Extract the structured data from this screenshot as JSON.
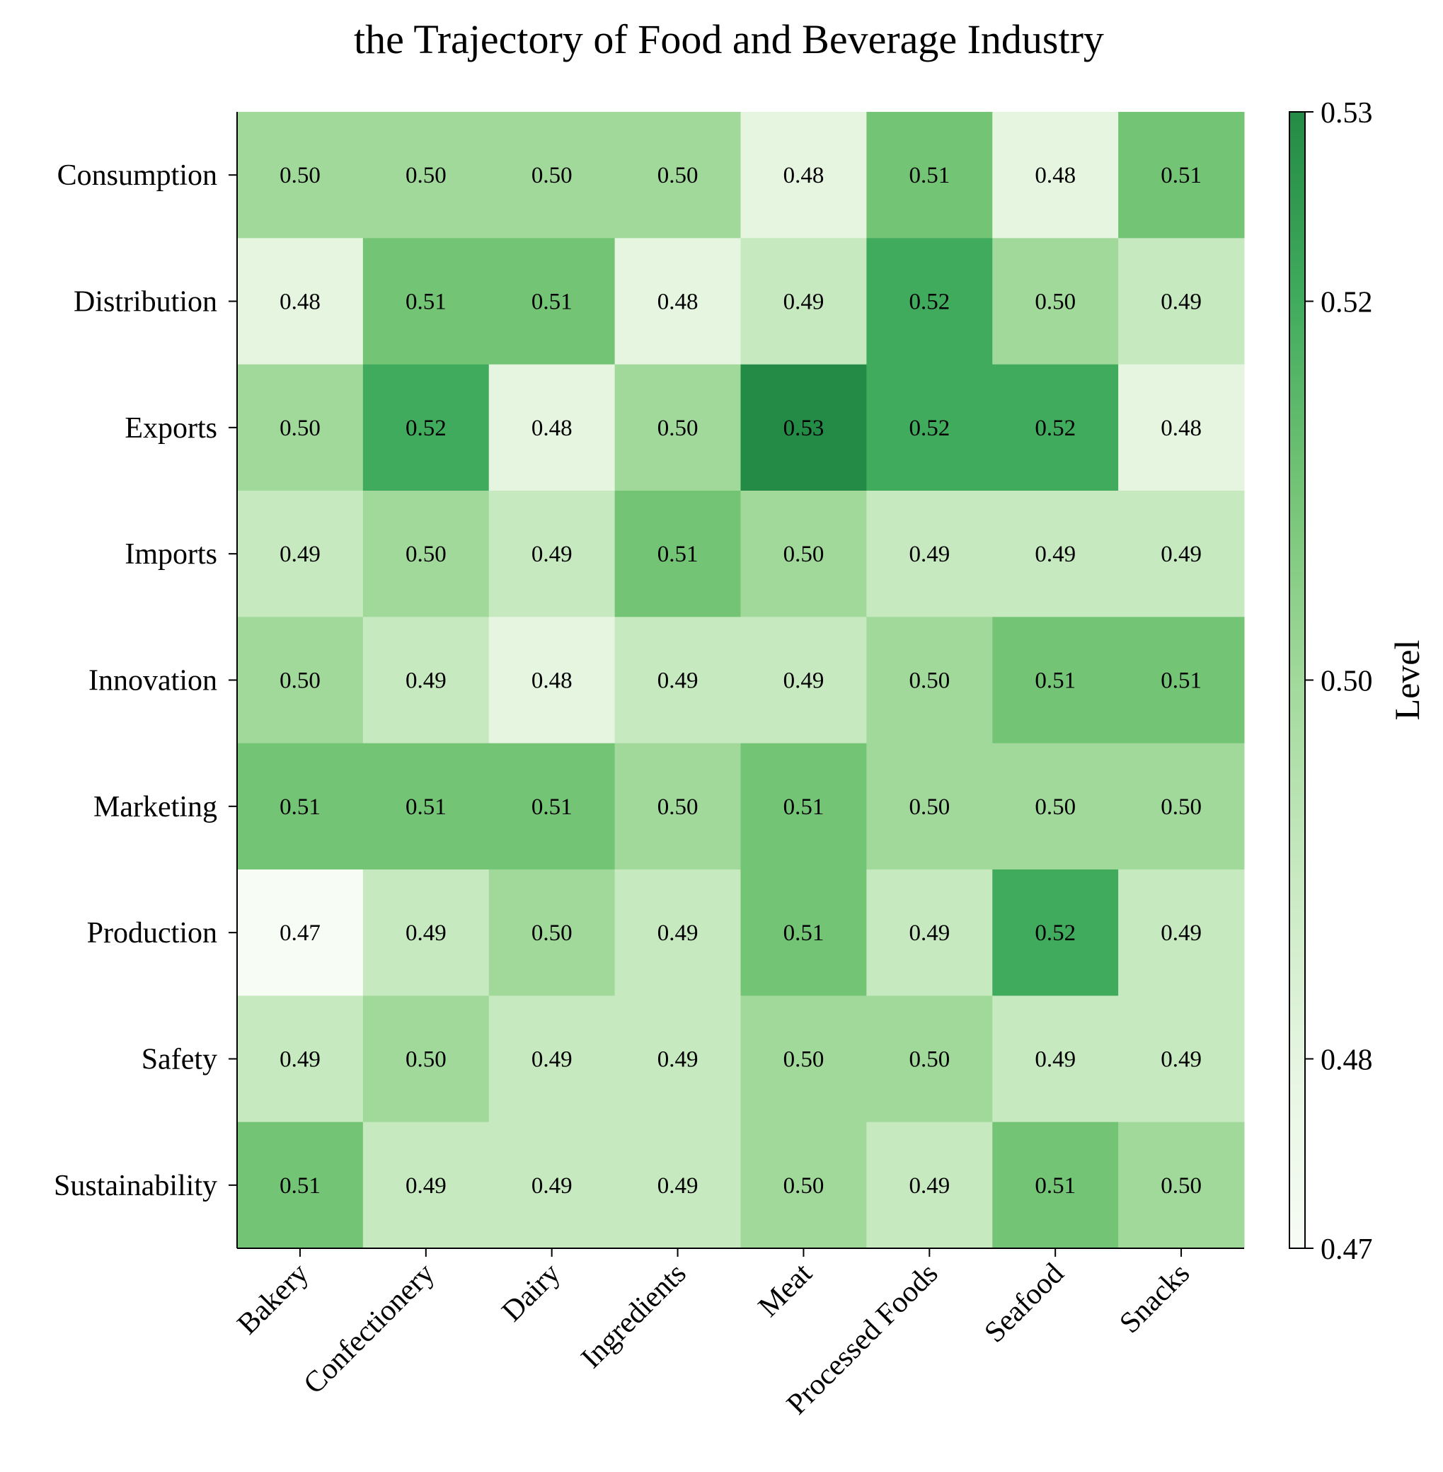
{
  "chart_data": {
    "type": "heatmap",
    "title": "the Trajectory of Food and Beverage Industry",
    "x_categories": [
      "Bakery",
      "Confectionery",
      "Dairy",
      "Ingredients",
      "Meat",
      "Processed Foods",
      "Seafood",
      "Snacks"
    ],
    "y_categories": [
      "Consumption",
      "Distribution",
      "Exports",
      "Imports",
      "Innovation",
      "Marketing",
      "Production",
      "Safety",
      "Sustainability"
    ],
    "values": [
      [
        0.5,
        0.5,
        0.5,
        0.5,
        0.48,
        0.51,
        0.48,
        0.51
      ],
      [
        0.48,
        0.51,
        0.51,
        0.48,
        0.49,
        0.52,
        0.5,
        0.49
      ],
      [
        0.5,
        0.52,
        0.48,
        0.5,
        0.53,
        0.52,
        0.52,
        0.48
      ],
      [
        0.49,
        0.5,
        0.49,
        0.51,
        0.5,
        0.49,
        0.49,
        0.49
      ],
      [
        0.5,
        0.49,
        0.48,
        0.49,
        0.49,
        0.5,
        0.51,
        0.51
      ],
      [
        0.51,
        0.51,
        0.51,
        0.5,
        0.51,
        0.5,
        0.5,
        0.5
      ],
      [
        0.47,
        0.49,
        0.5,
        0.49,
        0.51,
        0.49,
        0.52,
        0.49
      ],
      [
        0.49,
        0.5,
        0.49,
        0.49,
        0.5,
        0.5,
        0.49,
        0.49
      ],
      [
        0.51,
        0.49,
        0.49,
        0.49,
        0.5,
        0.49,
        0.51,
        0.5
      ]
    ],
    "value_format_decimals": 2,
    "colorbar": {
      "label": "Level",
      "range": [
        0.47,
        0.53
      ],
      "ticks": [
        0.47,
        0.48,
        0.5,
        0.52,
        0.53
      ],
      "colormap": "Greens",
      "colors": {
        "0.47": "#f7fcf5",
        "0.48": "#e5f5e0",
        "0.49": "#c7e9c0",
        "0.50": "#a1d99b",
        "0.51": "#74c476",
        "0.52": "#41ab5d",
        "0.53": "#238b45"
      }
    },
    "grid": false,
    "legend": "colorbar-right"
  }
}
